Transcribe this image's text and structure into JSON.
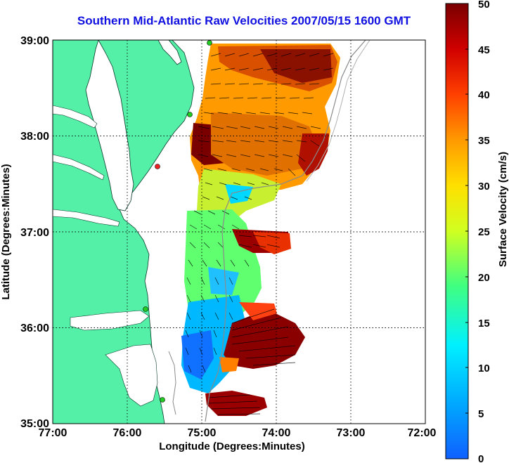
{
  "title": "Southern Mid-Atlantic Raw Velocities 2007/05/15 1600 GMT",
  "axes": {
    "xlabel": "Longitude (Degrees:Minutes)",
    "ylabel": "Latitude (Degrees:Minutes)",
    "x_ticks": [
      "77:00",
      "76:00",
      "75:00",
      "74:00",
      "73:00",
      "72:00"
    ],
    "y_ticks": [
      "39:00",
      "38:00",
      "37:00",
      "36:00",
      "35:00"
    ],
    "grid": "dotted"
  },
  "colorbar": {
    "label": "Surface Velocity (cm/s)",
    "ticks": [
      "50",
      "45",
      "40",
      "35",
      "30",
      "25",
      "20",
      "15",
      "10",
      "5",
      "0"
    ]
  },
  "colors": {
    "land": "#55f0a8",
    "title": "#1010e0",
    "station": "#22cc22",
    "station_alert": "#ee2222"
  },
  "chart_data": {
    "type": "heatmap",
    "title": "Southern Mid-Atlantic Raw Velocities 2007/05/15 1600 GMT",
    "xlabel": "Longitude (Degrees:Minutes)",
    "ylabel": "Latitude (Degrees:Minutes)",
    "x_range": [
      -77,
      -72
    ],
    "y_range": [
      35,
      39
    ],
    "color_range": [
      0,
      50
    ],
    "colorbar_label": "Surface Velocity (cm/s)",
    "grid": true,
    "field_samples": [
      {
        "lon": -74.5,
        "lat": 38.75,
        "speed": 40
      },
      {
        "lon": -74.9,
        "lat": 37.95,
        "speed": 48
      },
      {
        "lon": -74.5,
        "lat": 37.2,
        "speed": 18
      },
      {
        "lon": -74.5,
        "lat": 36.9,
        "speed": 46
      },
      {
        "lon": -74.7,
        "lat": 36.3,
        "speed": 12
      },
      {
        "lon": -75.1,
        "lat": 35.8,
        "speed": 8
      },
      {
        "lon": -74.2,
        "lat": 35.95,
        "speed": 49
      },
      {
        "lon": -74.9,
        "lat": 35.2,
        "speed": 45
      }
    ],
    "stations": [
      {
        "lon": -74.9,
        "lat": 39.0,
        "status": "active"
      },
      {
        "lon": -75.15,
        "lat": 38.22,
        "status": "active"
      },
      {
        "lon": -75.6,
        "lat": 37.7,
        "status": "alert"
      },
      {
        "lon": -75.6,
        "lat": 36.2,
        "status": "active"
      },
      {
        "lon": -75.55,
        "lat": 35.27,
        "status": "active"
      }
    ]
  }
}
